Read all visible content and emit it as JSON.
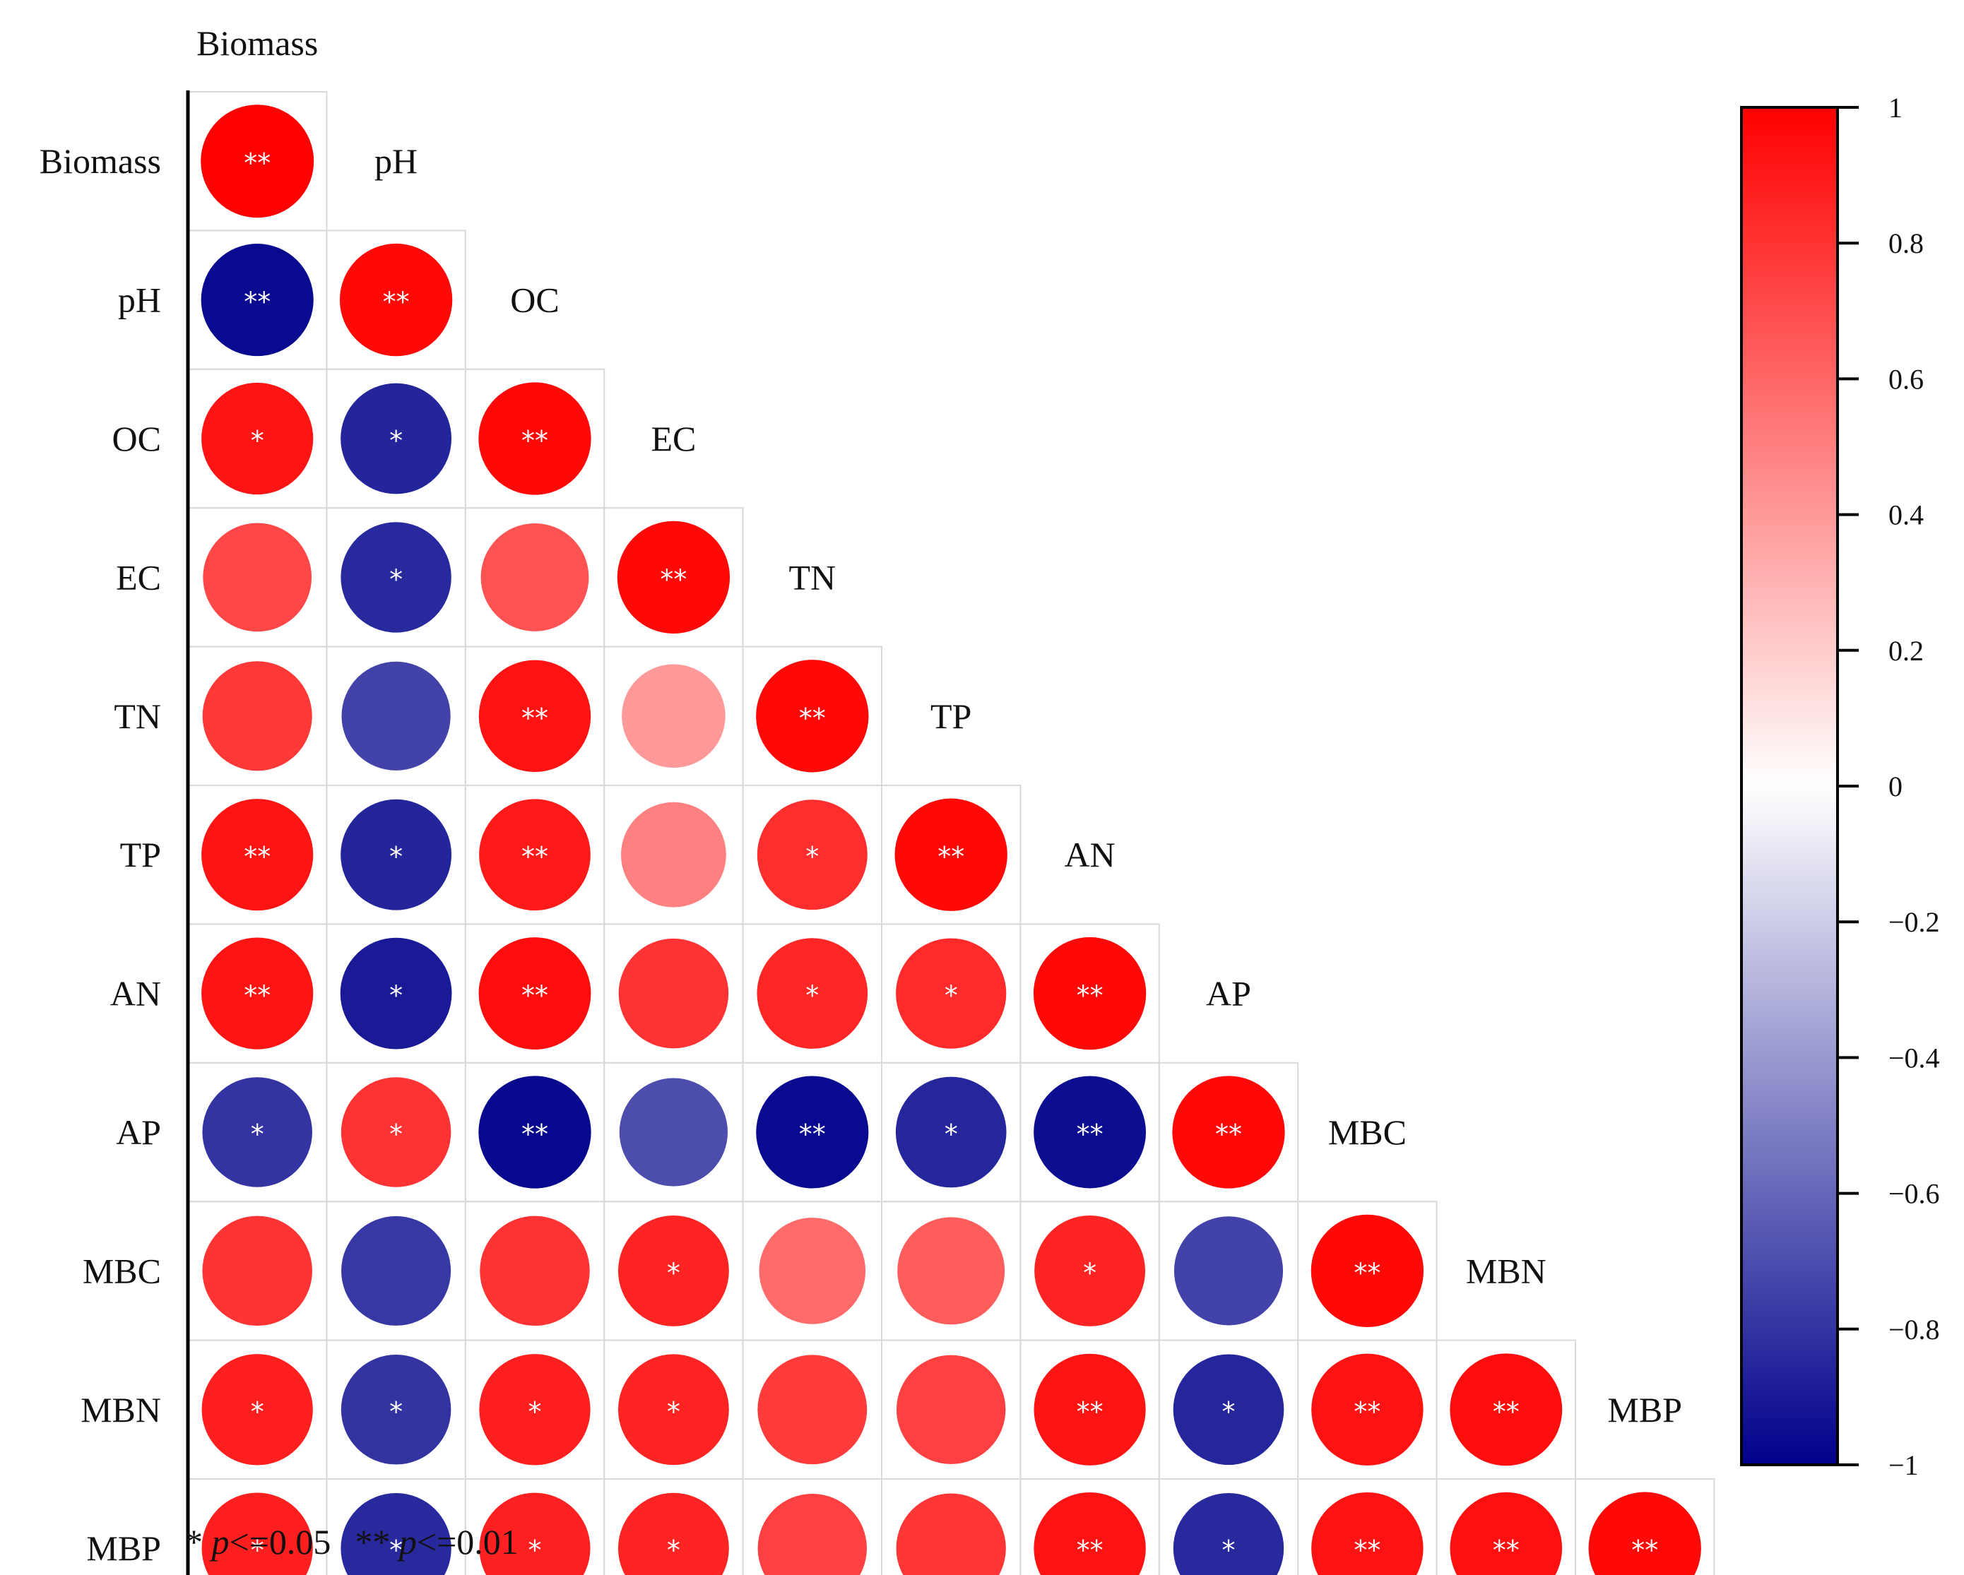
{
  "chart_data": {
    "type": "heatmap",
    "variables": [
      "Biomass",
      "pH",
      "OC",
      "EC",
      "TN",
      "TP",
      "AN",
      "AP",
      "MBC",
      "MBN",
      "MBP"
    ],
    "correlation": [
      [
        1.0
      ],
      [
        -0.96,
        0.97
      ],
      [
        0.92,
        -0.86,
        0.97
      ],
      [
        0.72,
        -0.84,
        0.68,
        0.97
      ],
      [
        0.78,
        -0.74,
        0.93,
        0.4,
        0.97
      ],
      [
        0.92,
        -0.86,
        0.9,
        0.5,
        0.82,
        0.97
      ],
      [
        0.92,
        -0.9,
        0.95,
        0.8,
        0.85,
        0.83,
        0.97
      ],
      [
        -0.8,
        0.8,
        -0.97,
        -0.7,
        -0.96,
        -0.85,
        -0.95,
        0.97
      ],
      [
        0.8,
        -0.78,
        0.8,
        0.86,
        0.58,
        0.64,
        0.86,
        -0.74,
        0.97
      ],
      [
        0.88,
        -0.8,
        0.88,
        0.86,
        0.77,
        0.75,
        0.92,
        -0.85,
        0.93,
        0.95
      ],
      [
        0.88,
        -0.84,
        0.87,
        0.86,
        0.75,
        0.79,
        0.93,
        -0.84,
        0.93,
        0.94,
        0.97
      ]
    ],
    "significance": [
      [
        "**"
      ],
      [
        "**",
        "**"
      ],
      [
        "*",
        "*",
        "**"
      ],
      [
        "",
        "*",
        "",
        "**"
      ],
      [
        "",
        "",
        "**",
        "",
        "**"
      ],
      [
        "**",
        "*",
        "**",
        "",
        "*",
        "**"
      ],
      [
        "**",
        "*",
        "**",
        "",
        "*",
        "*",
        "**"
      ],
      [
        "*",
        "*",
        "**",
        "",
        "**",
        "*",
        "**",
        "**"
      ],
      [
        "",
        "",
        "",
        "*",
        "",
        "",
        "*",
        "",
        "**"
      ],
      [
        "*",
        "*",
        "*",
        "*",
        "",
        "",
        "**",
        "*",
        "**",
        "**"
      ],
      [
        "*",
        "*",
        "*",
        "*",
        "",
        "",
        "**",
        "*",
        "**",
        "**",
        "**"
      ]
    ],
    "colorbar": {
      "min": -1,
      "max": 1,
      "ticks": [
        "1",
        "0.8",
        "0.6",
        "0.4",
        "0.2",
        "0",
        "−0.2",
        "−0.4",
        "−0.6",
        "−0.8",
        "−1"
      ],
      "tick_values": [
        1,
        0.8,
        0.6,
        0.4,
        0.2,
        0,
        -0.2,
        -0.4,
        -0.6,
        -0.8,
        -1
      ],
      "colors": {
        "negative": "#00008b",
        "zero": "#ffffff",
        "positive": "#ff0000"
      }
    },
    "footnote": {
      "star1": "* ",
      "p1": "p",
      "rest1": "<=0.05",
      "star2": "** ",
      "p2": "p",
      "rest2": "<=0.01"
    }
  }
}
